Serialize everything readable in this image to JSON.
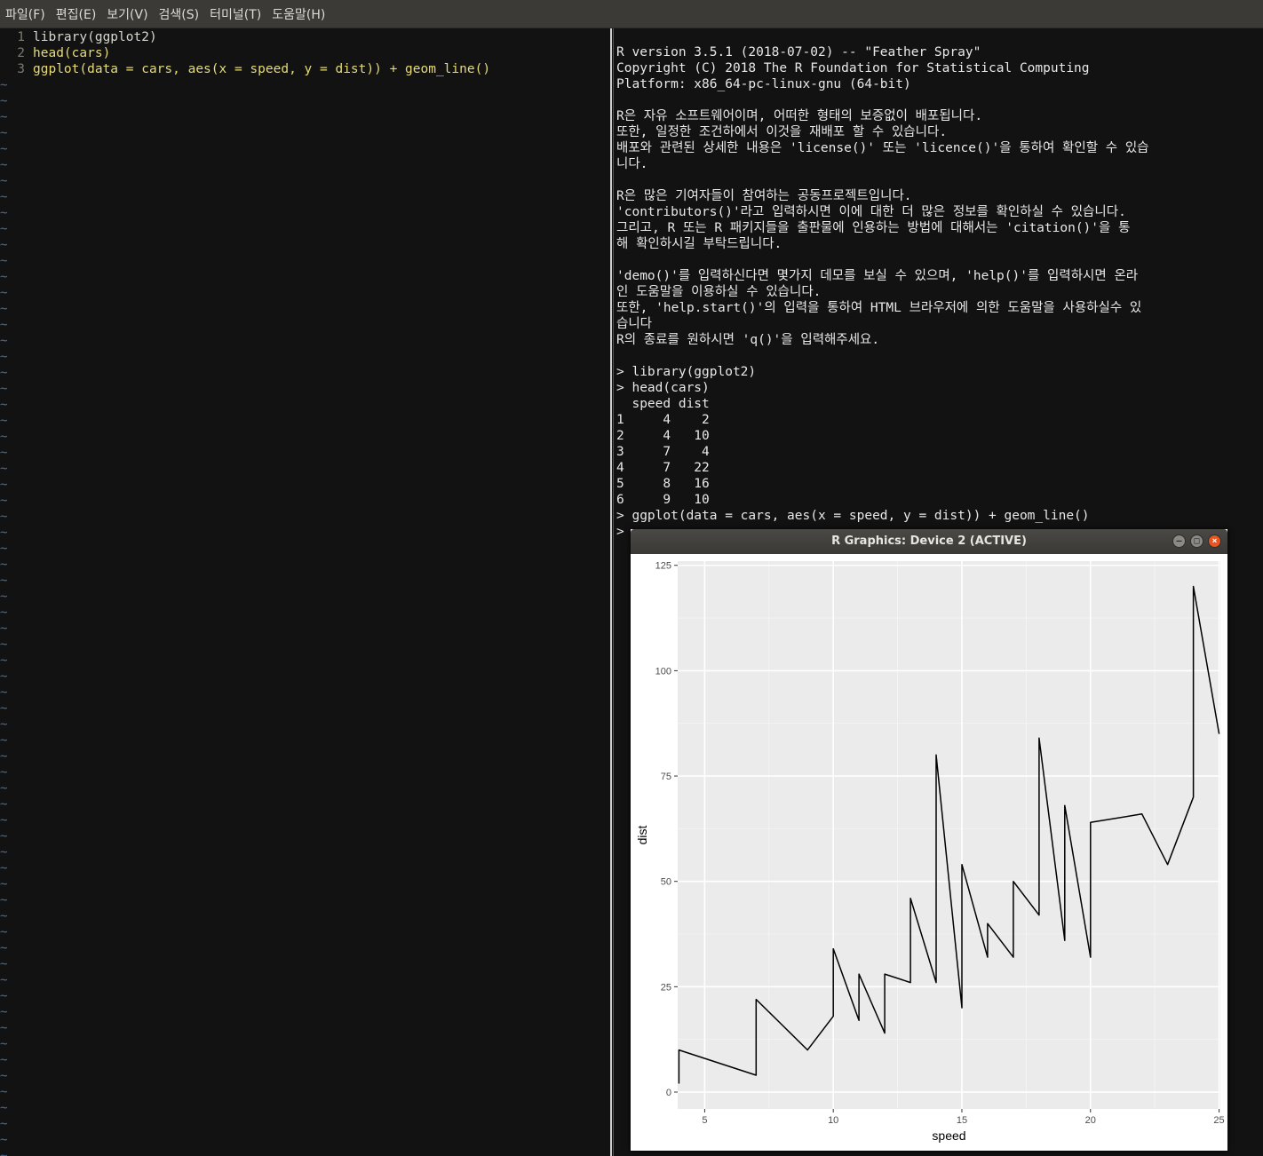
{
  "menubar": {
    "items": [
      "파일(F)",
      "편집(E)",
      "보기(V)",
      "검색(S)",
      "터미널(T)",
      "도움말(H)"
    ]
  },
  "editor": {
    "lines": [
      {
        "num": "1",
        "text": "library(ggplot2)"
      },
      {
        "num": "2",
        "text": "head(cars)"
      },
      {
        "num": "3",
        "text": "ggplot(data = cars, aes(x = speed, y = dist)) + geom_line()"
      }
    ],
    "tilde": "~"
  },
  "console": {
    "lines": [
      "R version 3.5.1 (2018-07-02) -- \"Feather Spray\"",
      "Copyright (C) 2018 The R Foundation for Statistical Computing",
      "Platform: x86_64-pc-linux-gnu (64-bit)",
      "",
      "R은 자유 소프트웨어이며, 어떠한 형태의 보증없이 배포됩니다.",
      "또한, 일정한 조건하에서 이것을 재배포 할 수 있습니다.",
      "배포와 관련된 상세한 내용은 'license()' 또는 'licence()'을 통하여 확인할 수 있습",
      "니다.",
      "",
      "R은 많은 기여자들이 참여하는 공동프로젝트입니다.",
      "'contributors()'라고 입력하시면 이에 대한 더 많은 정보를 확인하실 수 있습니다.",
      "그리고, R 또는 R 패키지들을 출판물에 인용하는 방법에 대해서는 'citation()'을 통",
      "해 확인하시길 부탁드립니다.",
      "",
      "'demo()'를 입력하신다면 몇가지 데모를 보실 수 있으며, 'help()'를 입력하시면 온라",
      "인 도움말을 이용하실 수 있습니다.",
      "또한, 'help.start()'의 입력을 통하여 HTML 브라우저에 의한 도움말을 사용하실수 있",
      "습니다",
      "R의 종료를 원하시면 'q()'을 입력해주세요.",
      "",
      "> library(ggplot2)",
      "> head(cars)",
      "  speed dist",
      "1     4    2",
      "2     4   10",
      "3     7    4",
      "4     7   22",
      "5     8   16",
      "6     9   10",
      "> ggplot(data = cars, aes(x = speed, y = dist)) + geom_line()",
      "> "
    ]
  },
  "graphics_window": {
    "title": "R Graphics: Device 2 (ACTIVE)",
    "buttons": [
      "–",
      "□",
      "×"
    ]
  },
  "chart_data": {
    "type": "line",
    "title": "",
    "xlabel": "speed",
    "ylabel": "dist",
    "xlim": [
      3.95,
      25.05
    ],
    "ylim": [
      -4,
      126
    ],
    "xticks": [
      5,
      10,
      15,
      20,
      25
    ],
    "yticks": [
      0,
      25,
      50,
      75,
      100,
      125
    ],
    "grid": true,
    "background": "#ebebeb",
    "line_color": "#000000",
    "series": [
      {
        "x": [
          4,
          4,
          7,
          7,
          8,
          9,
          10,
          10,
          10,
          11,
          11,
          12,
          12,
          12,
          12,
          13,
          13,
          13,
          13,
          14,
          14,
          14,
          14,
          15,
          15,
          15,
          16,
          16,
          17,
          17,
          17,
          18,
          18,
          18,
          18,
          19,
          19,
          19,
          20,
          20,
          20,
          20,
          20,
          22,
          23,
          24,
          24,
          24,
          24,
          25
        ],
        "y": [
          2,
          10,
          4,
          22,
          16,
          10,
          18,
          26,
          34,
          17,
          28,
          14,
          20,
          24,
          28,
          26,
          34,
          34,
          46,
          26,
          36,
          60,
          80,
          20,
          26,
          54,
          32,
          40,
          32,
          40,
          50,
          42,
          56,
          76,
          84,
          36,
          46,
          68,
          32,
          48,
          52,
          56,
          64,
          66,
          54,
          70,
          92,
          93,
          120,
          85
        ]
      }
    ]
  }
}
